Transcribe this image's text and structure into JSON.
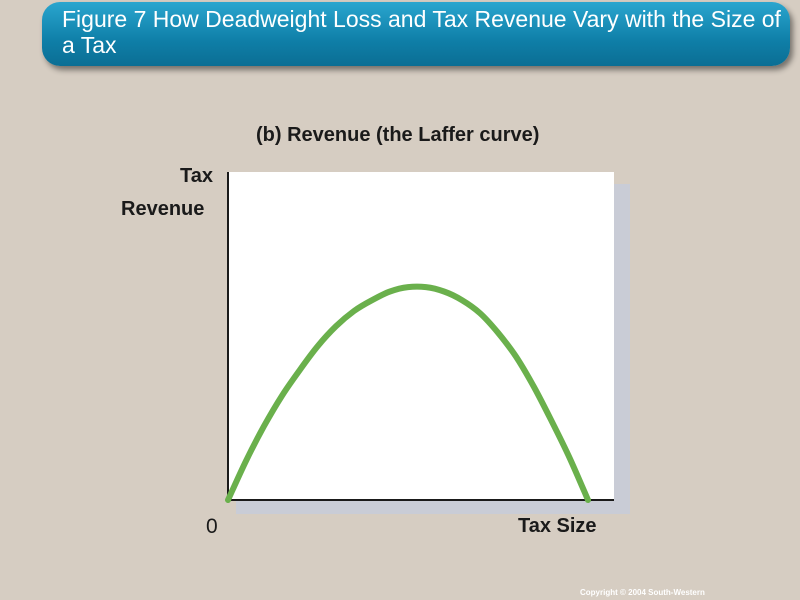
{
  "slide": {
    "title": "Figure 7 How Deadweight Loss and Tax Revenue Vary with the Size of a Tax",
    "copyright": "Copyright © 2004 South-Western"
  },
  "chart_data": {
    "type": "line",
    "title": "(b) Revenue (the Laffer curve)",
    "ylabel_top": "Tax",
    "ylabel_rest": "Revenue",
    "xlabel": "Tax Size",
    "origin_label": "0",
    "series": [
      {
        "x": [
          0,
          5,
          10,
          15,
          20,
          25,
          30,
          35,
          40,
          45,
          50,
          55,
          60,
          65,
          70,
          75,
          80,
          85,
          90,
          95,
          100
        ],
        "values": [
          0,
          18,
          34,
          48,
          60,
          71,
          80,
          87,
          92,
          96,
          98,
          98,
          96,
          92,
          86,
          77,
          66,
          52,
          36,
          19,
          0
        ],
        "color": "#6ab04c"
      }
    ],
    "xlim": [
      0,
      100
    ],
    "ylim": [
      0,
      151
    ],
    "grid": false,
    "legend": "none"
  }
}
